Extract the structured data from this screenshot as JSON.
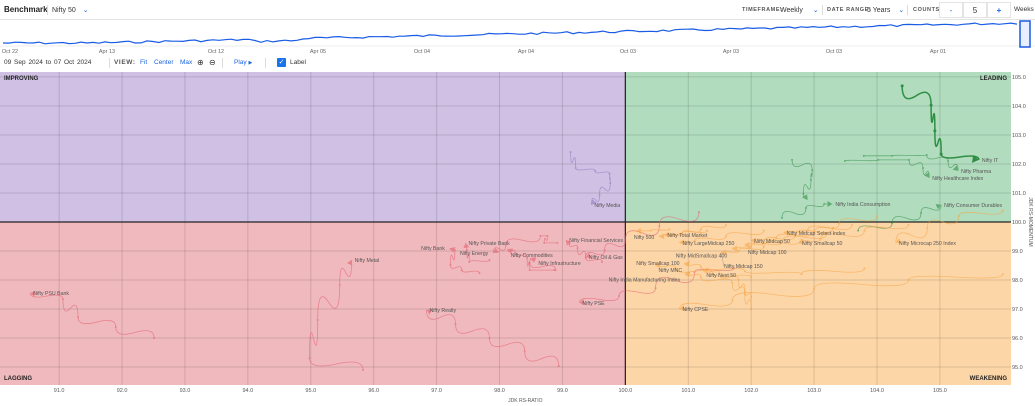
{
  "header": {
    "title": "Benchmark",
    "benchmark": "Nifty 50",
    "timeframe_label": "TIMEFRAME:",
    "timeframe": "Weekly",
    "date_range_label": "DATE RANGE:",
    "date_range": "5 Years",
    "counts_label": "COUNTS:",
    "minus": "-",
    "count": "5",
    "plus": "+",
    "unit": "Weeks"
  },
  "timeline": {
    "ticks": [
      "Oct 22",
      "Apr 13",
      "Oct 12",
      "Apr 05",
      "Oct 04",
      "Apr 04",
      "Oct 03",
      "Apr 03",
      "Oct 03",
      "Apr 01"
    ],
    "line_color": "#1a5ce6"
  },
  "controls": {
    "from_day": "09",
    "from_month": "Sep",
    "from_year": "2024",
    "to": "to",
    "to_day": "07",
    "to_month": "Oct",
    "to_year": "2024",
    "view_label": "VIEW:",
    "fit": "Fit",
    "center": "Center",
    "max": "Max",
    "play": "Play",
    "label_toggle": "Label",
    "label_checked": true
  },
  "chart_data": {
    "type": "scatter",
    "xlabel": "JDK RS-RATIO",
    "ylabel": "JDK RS-MOMENTUM",
    "xlim": [
      90.06,
      106.13
    ],
    "ylim": [
      94.38,
      105.17
    ],
    "xticks": [
      "91.0",
      "92.0",
      "93.0",
      "94.0",
      "95.0",
      "96.0",
      "97.0",
      "98.0",
      "99.0",
      "100.0",
      "101.0",
      "102.0",
      "103.0",
      "104.0",
      "105.0"
    ],
    "yticks": [
      "95.0",
      "96.0",
      "97.0",
      "98.0",
      "99.0",
      "100.0",
      "101.0",
      "102.0",
      "103.0",
      "104.0",
      "105.0"
    ],
    "grid": true,
    "quadrants": {
      "improving": {
        "label": "IMPROVING",
        "color": "#cfc0e4"
      },
      "leading": {
        "label": "LEADING",
        "color": "#b2dcbe"
      },
      "lagging": {
        "label": "LAGGING",
        "color": "#f0b9bd"
      },
      "weakening": {
        "label": "WEAKENING",
        "color": "#fdd6a8"
      }
    },
    "series_colors": {
      "leading": "#2f8f44",
      "improving": "#8b7bbd",
      "lagging": "#e2606f",
      "weakening": "#f5a443"
    },
    "series": [
      {
        "name": "Nifty IT",
        "quadrant": "leading",
        "highlight": true,
        "points": [
          [
            104.4,
            104.69
          ],
          [
            104.86,
            104.03
          ],
          [
            104.92,
            103.14
          ],
          [
            105.02,
            102.34
          ],
          [
            105.62,
            102.14
          ]
        ]
      },
      {
        "name": "Nifty Pharma",
        "quadrant": "leading",
        "points": [
          [
            103.79,
            102.28
          ],
          [
            104.24,
            102.28
          ],
          [
            104.79,
            102.31
          ],
          [
            105.13,
            102.1
          ],
          [
            105.29,
            101.76
          ]
        ]
      },
      {
        "name": "Nifty Healthcare Index",
        "quadrant": "leading",
        "points": [
          [
            103.49,
            102.1
          ],
          [
            104.02,
            102.14
          ],
          [
            104.51,
            102.14
          ],
          [
            104.73,
            101.86
          ],
          [
            104.83,
            101.52
          ]
        ]
      },
      {
        "name": "",
        "quadrant": "leading",
        "points": [
          [
            102.65,
            102.14
          ],
          [
            102.97,
            101.79
          ],
          [
            102.95,
            101.45
          ],
          [
            102.83,
            100.97
          ],
          [
            102.89,
            100.76
          ]
        ]
      },
      {
        "name": "Nifty India Consumption",
        "quadrant": "leading",
        "points": [
          [
            102.49,
            100.14
          ],
          [
            102.87,
            100.48
          ],
          [
            103.16,
            100.62
          ],
          [
            103.29,
            100.62
          ]
        ]
      },
      {
        "name": "Nifty Consumer Durables",
        "quadrant": "leading",
        "points": [
          [
            103.7,
            99.7
          ],
          [
            104.24,
            99.95
          ],
          [
            104.7,
            100.31
          ],
          [
            105.02,
            100.59
          ]
        ]
      },
      {
        "name": "Nifty Media",
        "quadrant": "improving",
        "points": [
          [
            99.13,
            102.41
          ],
          [
            99.21,
            101.86
          ],
          [
            99.52,
            101.76
          ],
          [
            99.75,
            101.66
          ],
          [
            99.76,
            101.34
          ],
          [
            99.59,
            100.93
          ],
          [
            99.46,
            100.59
          ]
        ]
      },
      {
        "name": "Nifty PSU Bank",
        "quadrant": "lagging",
        "points": [
          [
            92.51,
            96.0
          ],
          [
            91.9,
            96.38
          ],
          [
            91.3,
            96.72
          ],
          [
            91.06,
            97.34
          ],
          [
            90.54,
            97.55
          ]
        ]
      },
      {
        "name": "Nifty Metal",
        "quadrant": "lagging",
        "points": [
          [
            95.83,
            94.9
          ],
          [
            94.98,
            95.31
          ],
          [
            95.11,
            96.62
          ],
          [
            95.46,
            97.83
          ],
          [
            95.65,
            98.69
          ]
        ]
      },
      {
        "name": "Nifty Realty",
        "quadrant": "lagging",
        "points": [
          [
            98.94,
            95.03
          ],
          [
            98.4,
            95.55
          ],
          [
            97.84,
            96.0
          ],
          [
            97.3,
            96.48
          ],
          [
            96.84,
            96.97
          ]
        ]
      },
      {
        "name": "Nifty PSE",
        "quadrant": "lagging",
        "points": [
          [
            101.73,
            98.41
          ],
          [
            101.1,
            98.28
          ],
          [
            100.48,
            97.72
          ],
          [
            99.9,
            97.45
          ],
          [
            99.27,
            97.21
          ]
        ]
      },
      {
        "name": "Nifty Bank",
        "quadrant": "lagging",
        "points": [
          [
            97.68,
            98.24
          ],
          [
            97.4,
            98.34
          ],
          [
            97.22,
            98.52
          ],
          [
            97.29,
            99.03
          ],
          [
            97.21,
            99.1
          ]
        ]
      },
      {
        "name": "Nifty Private Bank",
        "quadrant": "lagging",
        "points": [
          [
            97.84,
            98.69
          ],
          [
            97.52,
            98.62
          ],
          [
            97.48,
            99.03
          ],
          [
            97.46,
            99.28
          ]
        ]
      },
      {
        "name": "Nifty Energy",
        "quadrant": "lagging",
        "points": [
          [
            98.92,
            99.28
          ],
          [
            98.71,
            99.28
          ],
          [
            98.76,
            99.52
          ],
          [
            98.65,
            99.52
          ],
          [
            98.1,
            99.21
          ],
          [
            97.9,
            98.93
          ]
        ]
      },
      {
        "name": "Nifty Commodities",
        "quadrant": "lagging",
        "points": [
          [
            98.87,
            98.34
          ],
          [
            98.48,
            98.34
          ],
          [
            98.44,
            98.76
          ],
          [
            98.25,
            98.93
          ],
          [
            98.13,
            99.07
          ]
        ]
      },
      {
        "name": "Nifty Infrastructure",
        "quadrant": "lagging",
        "points": [
          [
            98.89,
            98.34
          ],
          [
            98.48,
            98.59
          ],
          [
            98.57,
            98.79
          ]
        ]
      },
      {
        "name": "Nifty Financial Services",
        "quadrant": "lagging",
        "points": [
          [
            99.63,
            98.62
          ],
          [
            99.37,
            98.76
          ],
          [
            99.24,
            99.1
          ],
          [
            99.11,
            99.24
          ],
          [
            99.06,
            99.38
          ]
        ]
      },
      {
        "name": "Nifty Oil & Gas",
        "quadrant": "lagging",
        "points": [
          [
            101.17,
            100.34
          ],
          [
            100.54,
            99.86
          ],
          [
            100.0,
            99.38
          ],
          [
            99.67,
            99.03
          ],
          [
            99.37,
            98.79
          ]
        ]
      },
      {
        "name": "Nifty Total Market",
        "quadrant": "weakening",
        "points": [
          [
            101.6,
            99.9
          ],
          [
            101.2,
            99.75
          ],
          [
            100.9,
            99.6
          ],
          [
            100.62,
            99.55
          ]
        ]
      },
      {
        "name": "Nifty 500",
        "quadrant": "weakening",
        "points": [
          [
            101.3,
            99.7
          ],
          [
            100.9,
            99.6
          ],
          [
            100.54,
            99.48
          ]
        ]
      },
      {
        "name": "",
        "quadrant": "weakening",
        "points": [
          [
            100.7,
            99.75
          ],
          [
            100.4,
            99.7
          ],
          [
            100.17,
            99.69
          ]
        ]
      },
      {
        "name": "Nifty LargeMidcap 250",
        "quadrant": "weakening",
        "points": [
          [
            102.2,
            99.7
          ],
          [
            101.6,
            99.5
          ],
          [
            101.1,
            99.35
          ],
          [
            100.86,
            99.28
          ]
        ]
      },
      {
        "name": "Nifty Midcap Select Index",
        "quadrant": "weakening",
        "points": [
          [
            104.0,
            100.2
          ],
          [
            103.4,
            99.95
          ],
          [
            102.9,
            99.7
          ],
          [
            102.52,
            99.62
          ]
        ]
      },
      {
        "name": "Nifty Smallcap 50",
        "quadrant": "weakening",
        "points": [
          [
            104.5,
            99.9
          ],
          [
            103.8,
            99.7
          ],
          [
            103.1,
            99.4
          ],
          [
            102.76,
            99.28
          ]
        ]
      },
      {
        "name": "Nifty Midcap 50",
        "quadrant": "weakening",
        "points": [
          [
            103.6,
            99.9
          ],
          [
            103.0,
            99.65
          ],
          [
            102.4,
            99.45
          ],
          [
            102.0,
            99.34
          ]
        ]
      },
      {
        "name": "Nifty Midcap 100",
        "quadrant": "weakening",
        "points": [
          [
            103.3,
            99.8
          ],
          [
            102.7,
            99.55
          ],
          [
            102.2,
            99.3
          ],
          [
            101.9,
            99.17
          ]
        ]
      },
      {
        "name": "Nifty MidSmallcap 400",
        "quadrant": "weakening",
        "points": [
          [
            103.2,
            99.6
          ],
          [
            102.5,
            99.35
          ],
          [
            102.0,
            99.15
          ],
          [
            101.7,
            99.07
          ]
        ]
      },
      {
        "name": "Nifty Midcap 150",
        "quadrant": "weakening",
        "points": [
          [
            102.8,
            99.4
          ],
          [
            102.2,
            99.15
          ],
          [
            101.8,
            99.0
          ],
          [
            101.52,
            98.93
          ]
        ]
      },
      {
        "name": "Nifty Microcap 250 Index",
        "quadrant": "weakening",
        "points": [
          [
            106.0,
            100.4
          ],
          [
            105.3,
            100.2
          ],
          [
            104.8,
            99.8
          ],
          [
            104.3,
            99.28
          ]
        ]
      },
      {
        "name": "Nifty MNC",
        "quadrant": "weakening",
        "points": [
          [
            102.0,
            98.1
          ],
          [
            101.4,
            98.2
          ],
          [
            100.8,
            98.4
          ],
          [
            100.48,
            98.55
          ]
        ]
      },
      {
        "name": "Nifty Smallcap 100",
        "quadrant": "weakening",
        "points": [
          [
            103.8,
            98.4
          ],
          [
            102.8,
            98.2
          ],
          [
            101.9,
            98.3
          ],
          [
            101.2,
            98.45
          ],
          [
            100.94,
            98.59
          ]
        ]
      },
      {
        "name": "Nifty Next 50",
        "quadrant": "weakening",
        "points": [
          [
            102.0,
            97.4
          ],
          [
            101.9,
            97.6
          ],
          [
            101.8,
            98.0
          ],
          [
            101.5,
            98.2
          ],
          [
            101.24,
            98.38
          ]
        ]
      },
      {
        "name": "Nifty India Manufacturing Index",
        "quadrant": "weakening",
        "points": [
          [
            102.0,
            97.0
          ],
          [
            101.9,
            97.5
          ],
          [
            101.7,
            97.9
          ],
          [
            101.2,
            98.1
          ],
          [
            100.95,
            98.24
          ]
        ]
      },
      {
        "name": "Nifty CPSE",
        "quadrant": "weakening",
        "points": [
          [
            106.0,
            98.2
          ],
          [
            104.5,
            98.0
          ],
          [
            103.0,
            97.7
          ],
          [
            101.7,
            97.3
          ],
          [
            100.86,
            97.0
          ]
        ]
      }
    ]
  }
}
